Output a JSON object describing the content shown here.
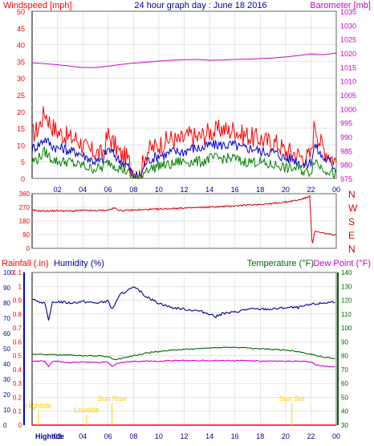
{
  "colors": {
    "wind": "#ff0000",
    "wind_avg": "#0000cc",
    "wind_low": "#008000",
    "barometer": "#cc00cc",
    "direction": "#dd0000",
    "rain": "#ff0000",
    "humidity": "#000099",
    "temperature": "#006600",
    "dewpoint": "#cc00cc",
    "tide": "#ffcc00",
    "grid": "#cccccc"
  },
  "header": {
    "left_label": "Windspeed [mph]",
    "title": "24 hour graph day : June 18 2016",
    "right_label": "Barometer [mb]"
  },
  "bottom_header": {
    "rain_label": "Rainfall (.in)",
    "humidity_label": "Humidity (%)",
    "temp_label": "Temperature (°F)",
    "dew_label": "Dew Point (°F)"
  },
  "chart_data": [
    {
      "type": "line",
      "x_ticks": [
        "02",
        "04",
        "06",
        "08",
        "10",
        "12",
        "14",
        "16",
        "18",
        "20",
        "22",
        "00"
      ],
      "y_left_ticks": [
        "0",
        "5",
        "10",
        "15",
        "20",
        "25",
        "30",
        "35",
        "40",
        "45",
        "50"
      ],
      "y_right_ticks": [
        "975",
        "980",
        "985",
        "990",
        "995",
        "1000",
        "1005",
        "1010",
        "1015",
        "1020",
        "1025",
        "1030",
        "1035"
      ],
      "ylim_left": [
        0,
        50
      ],
      "ylim_right": [
        975,
        1035
      ],
      "xlim": [
        0,
        24
      ],
      "series": [
        {
          "name": "Windspeed [mph]",
          "axis": "left",
          "x": [
            0,
            0.5,
            1,
            1.5,
            2,
            2.5,
            3,
            3.5,
            4,
            4.5,
            5,
            5.5,
            6,
            6.5,
            7,
            7.5,
            8,
            8.5,
            9,
            9.5,
            10,
            10.5,
            11,
            11.5,
            12,
            12.5,
            13,
            13.5,
            14,
            14.5,
            15,
            15.5,
            16,
            16.5,
            17,
            17.5,
            18,
            18.5,
            19,
            19.5,
            20,
            20.5,
            21,
            21.5,
            22,
            22.3,
            22.6,
            23,
            23.5,
            24
          ],
          "y": [
            13,
            15,
            20,
            16,
            14,
            13,
            12,
            12,
            10,
            8,
            8,
            7,
            13,
            10,
            7,
            6,
            2,
            1,
            8,
            9,
            10,
            11,
            12,
            11,
            12,
            13,
            12,
            13,
            14,
            14,
            15,
            14,
            15,
            13,
            13,
            12,
            12,
            11,
            11,
            10,
            8,
            8,
            7,
            6,
            7,
            17,
            12,
            9,
            7,
            5
          ]
        },
        {
          "name": "Wind Average",
          "axis": "left",
          "x": [
            0,
            0.5,
            1,
            1.5,
            2,
            2.5,
            3,
            3.5,
            4,
            4.5,
            5,
            5.5,
            6,
            6.5,
            7,
            7.5,
            8,
            8.5,
            9,
            9.5,
            10,
            10.5,
            11,
            11.5,
            12,
            12.5,
            13,
            13.5,
            14,
            14.5,
            15,
            15.5,
            16,
            16.5,
            17,
            17.5,
            18,
            18.5,
            19,
            19.5,
            20,
            20.5,
            21,
            21.5,
            22,
            22.3,
            22.6,
            23,
            23.5,
            24
          ],
          "y": [
            9,
            10,
            12,
            10,
            9,
            9,
            8,
            8,
            7,
            6,
            5,
            5,
            9,
            7,
            5,
            4,
            1,
            0.5,
            5,
            6,
            7,
            7,
            8,
            8,
            8,
            9,
            9,
            9,
            10,
            10,
            10,
            10,
            10,
            9,
            9,
            9,
            8,
            8,
            8,
            7,
            6,
            6,
            5,
            4,
            5,
            10,
            8,
            6,
            5,
            3
          ]
        },
        {
          "name": "Wind Low",
          "axis": "left",
          "x": [
            0,
            0.5,
            1,
            1.5,
            2,
            2.5,
            3,
            3.5,
            4,
            4.5,
            5,
            5.5,
            6,
            6.5,
            7,
            7.5,
            8,
            8.5,
            9,
            9.5,
            10,
            10.5,
            11,
            11.5,
            12,
            12.5,
            13,
            13.5,
            14,
            14.5,
            15,
            15.5,
            16,
            16.5,
            17,
            17.5,
            18,
            18.5,
            19,
            19.5,
            20,
            20.5,
            21,
            21.5,
            22,
            22.3,
            22.6,
            23,
            23.5,
            24
          ],
          "y": [
            5,
            6,
            8,
            6,
            5,
            5,
            5,
            4,
            4,
            3,
            3,
            3,
            5,
            4,
            3,
            2,
            0,
            0,
            3,
            3,
            4,
            4,
            4,
            5,
            5,
            5,
            5,
            5,
            6,
            6,
            6,
            6,
            6,
            5,
            5,
            5,
            5,
            4,
            4,
            4,
            3,
            3,
            3,
            2,
            2,
            6,
            4,
            3,
            2,
            1
          ]
        },
        {
          "name": "Barometer [mb]",
          "axis": "right",
          "x": [
            0,
            1,
            2,
            3,
            4,
            5,
            6,
            7,
            8,
            9,
            10,
            11,
            12,
            13,
            14,
            15,
            16,
            17,
            18,
            19,
            20,
            21,
            22,
            23,
            24
          ],
          "y": [
            1016.5,
            1016.2,
            1015.8,
            1015.3,
            1014.8,
            1014.8,
            1015.3,
            1015.9,
            1016.4,
            1016.7,
            1017.1,
            1017.4,
            1017.6,
            1017.7,
            1017.4,
            1017.5,
            1017.7,
            1017.8,
            1018.0,
            1018.2,
            1018.6,
            1019.1,
            1019.7,
            1019.4,
            1020.0
          ]
        }
      ]
    },
    {
      "type": "line",
      "x_ticks": [
        "02",
        "04",
        "06",
        "08",
        "10",
        "12",
        "14",
        "16",
        "18",
        "20",
        "22",
        "00"
      ],
      "y_left_ticks": [
        "0",
        "90",
        "180",
        "270",
        "360"
      ],
      "y_right_labels": [
        "N",
        "W",
        "S",
        "E",
        "N"
      ],
      "ylim": [
        0,
        360
      ],
      "xlim": [
        0,
        24
      ],
      "series": [
        {
          "name": "Wind Direction",
          "x": [
            0,
            1,
            2,
            3,
            4,
            5,
            6,
            6.5,
            7,
            8,
            9,
            10,
            11,
            12,
            13,
            14,
            15,
            16,
            17,
            18,
            19,
            20,
            21,
            21.7,
            21.9,
            22.1,
            22.3,
            23,
            24
          ],
          "y": [
            250,
            245,
            248,
            245,
            250,
            248,
            252,
            265,
            248,
            252,
            255,
            258,
            262,
            265,
            268,
            272,
            275,
            280,
            285,
            290,
            295,
            305,
            318,
            335,
            350,
            20,
            110,
            100,
            85
          ]
        }
      ]
    },
    {
      "type": "line",
      "x_ticks": [
        "02",
        "04",
        "06",
        "08",
        "10",
        "12",
        "14",
        "16",
        "18",
        "20",
        "22",
        "00"
      ],
      "y_rain_ticks": [
        "0",
        "0.1",
        "0.2",
        "0.3",
        "0.4",
        "0.5",
        "0.6",
        "0.7",
        "0.8",
        "0.9",
        "1",
        "1.1"
      ],
      "y_humidity_ticks": [
        "0",
        "10",
        "20",
        "30",
        "40",
        "50",
        "60",
        "70",
        "80",
        "90",
        "100"
      ],
      "y_temp_ticks": [
        "30",
        "40",
        "50",
        "60",
        "70",
        "80",
        "90",
        "100",
        "110",
        "120",
        "130",
        "140"
      ],
      "ylim_rain": [
        0,
        1.1
      ],
      "ylim_humidity": [
        0,
        100
      ],
      "ylim_temp": [
        30,
        140
      ],
      "xlim": [
        0,
        24
      ],
      "annotations": [
        {
          "text": "Hightide",
          "x": 0.5
        },
        {
          "text": "Lowtide",
          "x": 4.3
        },
        {
          "text": "Sun Rise",
          "x": 6.3
        },
        {
          "text": "Sun Set",
          "x": 20.5
        }
      ],
      "x_prefix_label": "Hightide",
      "series": [
        {
          "name": "Rainfall (.in)",
          "axis": "rain",
          "x": [
            0,
            24
          ],
          "y": [
            0,
            0
          ]
        },
        {
          "name": "Humidity (%)",
          "axis": "humidity",
          "x": [
            0,
            1,
            1.3,
            1.6,
            2,
            3,
            4,
            5,
            6,
            6.3,
            6.6,
            7,
            8,
            8.5,
            9,
            10,
            11,
            12,
            13,
            14,
            14.5,
            15,
            16,
            17,
            18,
            19,
            20,
            21,
            22,
            23,
            24
          ],
          "y": [
            82,
            80,
            68,
            80,
            81,
            80,
            81,
            80,
            81,
            76,
            80,
            86,
            90,
            88,
            84,
            80,
            77,
            76,
            75,
            73,
            71,
            73,
            74,
            76,
            76,
            76,
            77,
            77,
            79,
            80,
            81
          ]
        },
        {
          "name": "Temperature (°F)",
          "axis": "temp",
          "x": [
            0,
            1,
            2,
            3,
            4,
            5,
            6,
            6.5,
            7,
            8,
            9,
            10,
            11,
            12,
            13,
            14,
            15,
            16,
            17,
            18,
            19,
            20,
            21,
            22,
            23,
            24
          ],
          "y": [
            81,
            81,
            80.5,
            80.5,
            80,
            80,
            79.5,
            77,
            78,
            80,
            82,
            83,
            84,
            84.5,
            85,
            85.5,
            86,
            86,
            85.5,
            85,
            84.5,
            84,
            83,
            81,
            79,
            78
          ]
        },
        {
          "name": "Dew Point (°F)",
          "axis": "temp",
          "x": [
            0,
            1,
            1.3,
            1.6,
            2,
            3,
            4,
            5,
            6,
            6.3,
            6.6,
            7,
            8,
            9,
            10,
            11,
            12,
            13,
            14,
            15,
            16,
            17,
            18,
            19,
            20,
            21,
            22,
            22.5,
            23,
            24
          ],
          "y": [
            76,
            76,
            72,
            75.5,
            76,
            75,
            75.5,
            75,
            75.5,
            72,
            74,
            75,
            76,
            76,
            76,
            76.5,
            76.5,
            76.5,
            76.5,
            76.5,
            76.5,
            76.5,
            76,
            76,
            76,
            76,
            75.5,
            73,
            72.5,
            72
          ]
        }
      ]
    }
  ]
}
